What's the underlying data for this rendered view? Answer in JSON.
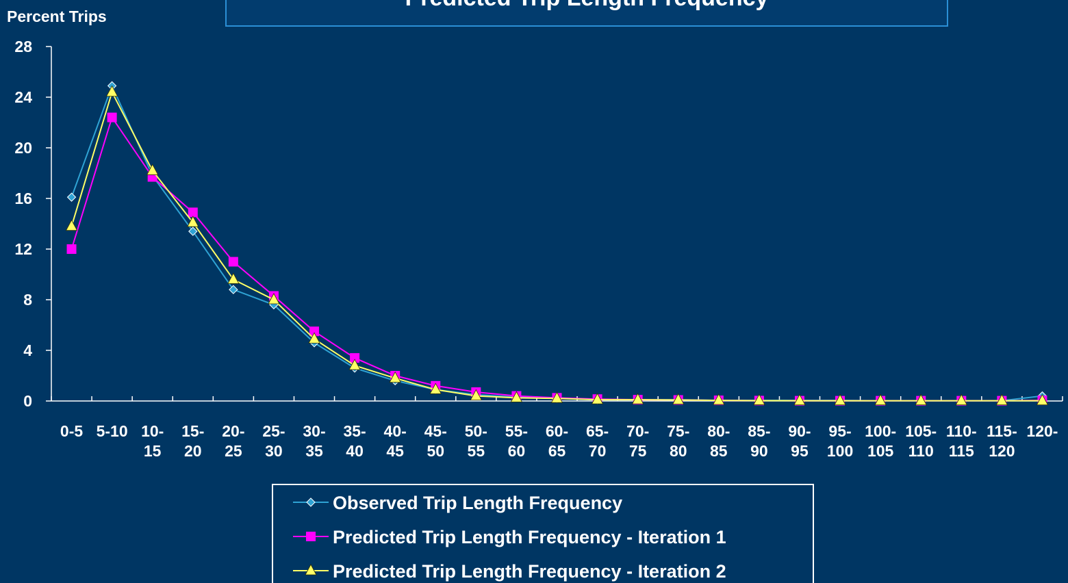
{
  "chart_data": {
    "type": "line",
    "title": "Predicted Trip Length Frequency",
    "ylabel": "Percent Trips",
    "xlabel": "",
    "ylim": [
      0,
      28
    ],
    "yticks": [
      0,
      4,
      8,
      12,
      16,
      20,
      24,
      28
    ],
    "categories": [
      "0-5",
      "5-10",
      "10-15",
      "15-20",
      "20-25",
      "25-30",
      "30-35",
      "35-40",
      "40-45",
      "45-50",
      "50-55",
      "55-60",
      "60-65",
      "65-70",
      "70-75",
      "75-80",
      "80-85",
      "85-90",
      "90-95",
      "95-100",
      "100-105",
      "105-110",
      "110-115",
      "115-120",
      "120-"
    ],
    "category_lines": [
      [
        "0-5"
      ],
      [
        "5-10"
      ],
      [
        "10-",
        "15"
      ],
      [
        "15-",
        "20"
      ],
      [
        "20-",
        "25"
      ],
      [
        "25-",
        "30"
      ],
      [
        "30-",
        "35"
      ],
      [
        "35-",
        "40"
      ],
      [
        "40-",
        "45"
      ],
      [
        "45-",
        "50"
      ],
      [
        "50-",
        "55"
      ],
      [
        "55-",
        "60"
      ],
      [
        "60-",
        "65"
      ],
      [
        "65-",
        "70"
      ],
      [
        "70-",
        "75"
      ],
      [
        "75-",
        "80"
      ],
      [
        "80-",
        "85"
      ],
      [
        "85-",
        "90"
      ],
      [
        "90-",
        "95"
      ],
      [
        "95-",
        "100"
      ],
      [
        "100-",
        "105"
      ],
      [
        "105-",
        "110"
      ],
      [
        "110-",
        "115"
      ],
      [
        "115-",
        "120"
      ],
      [
        "120-"
      ]
    ],
    "legend_position": "bottom",
    "series": [
      {
        "name": "Observed Trip Length Frequency",
        "color": "#2fa3d4",
        "marker": "diamond",
        "values": [
          16.1,
          24.9,
          17.8,
          13.4,
          8.8,
          7.6,
          4.6,
          2.6,
          1.6,
          0.9,
          0.5,
          0.3,
          0.2,
          0.1,
          0.1,
          0.1,
          0.05,
          0.05,
          0.05,
          0.05,
          0.02,
          0.02,
          0.02,
          0.02,
          0.4
        ]
      },
      {
        "name": "Predicted Trip Length Frequency - Iteration 1",
        "color": "#ff00ff",
        "marker": "square",
        "values": [
          12.0,
          22.4,
          17.7,
          14.9,
          11.0,
          8.3,
          5.5,
          3.4,
          2.0,
          1.2,
          0.7,
          0.4,
          0.25,
          0.15,
          0.1,
          0.08,
          0.05,
          0.03,
          0.02,
          0.02,
          0.02,
          0.02,
          0.02,
          0.02,
          0.05
        ]
      },
      {
        "name": "Predicted Trip Length Frequency - Iteration 2",
        "color": "#ffff66",
        "marker": "triangle",
        "values": [
          13.8,
          24.4,
          18.2,
          14.1,
          9.6,
          8.0,
          4.9,
          2.8,
          1.8,
          0.9,
          0.4,
          0.25,
          0.2,
          0.1,
          0.1,
          0.08,
          0.05,
          0.03,
          0.02,
          0.02,
          0.02,
          0.02,
          0.02,
          0.02,
          0.02
        ]
      }
    ]
  }
}
